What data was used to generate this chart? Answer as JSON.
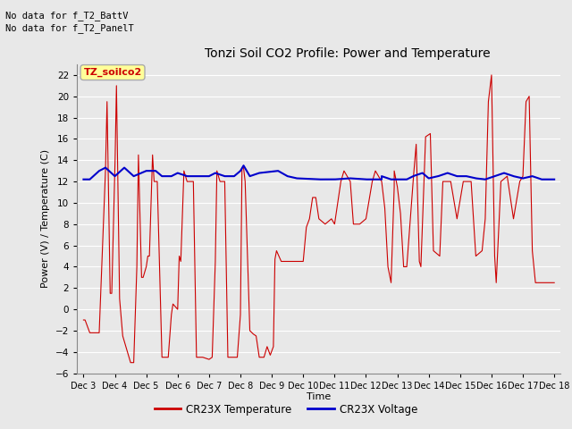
{
  "title": "Tonzi Soil CO2 Profile: Power and Temperature",
  "ylabel": "Power (V) / Temperature (C)",
  "xlabel": "Time",
  "ylim": [
    -6,
    23
  ],
  "yticks": [
    -6,
    -4,
    -2,
    0,
    2,
    4,
    6,
    8,
    10,
    12,
    14,
    16,
    18,
    20,
    22
  ],
  "bg_color": "#e8e8e8",
  "plot_bg_color": "#e8e8e8",
  "no_data_text1": "No data for f_T2_BattV",
  "no_data_text2": "No data for f_T2_PanelT",
  "legend_box_text": "TZ_soilco2",
  "legend_box_color": "#ffff99",
  "legend_box_border": "#aaaaaa",
  "x_tick_labels": [
    "Dec 3",
    "Dec 4",
    "Dec 5",
    "Dec 6",
    "Dec 7",
    "Dec 8",
    "Dec 9",
    "Dec 10",
    "Dec 11",
    "Dec 12",
    "Dec 13",
    "Dec 14",
    "Dec 15",
    "Dec 16",
    "Dec 17",
    "Dec 18"
  ],
  "x_tick_positions": [
    3,
    4,
    5,
    6,
    7,
    8,
    9,
    10,
    11,
    12,
    13,
    14,
    15,
    16,
    17,
    18
  ],
  "xlim": [
    2.8,
    18.2
  ],
  "temp_color": "#cc0000",
  "volt_color": "#0000cc",
  "legend_temp_label": "CR23X Temperature",
  "legend_volt_label": "CR23X Voltage"
}
